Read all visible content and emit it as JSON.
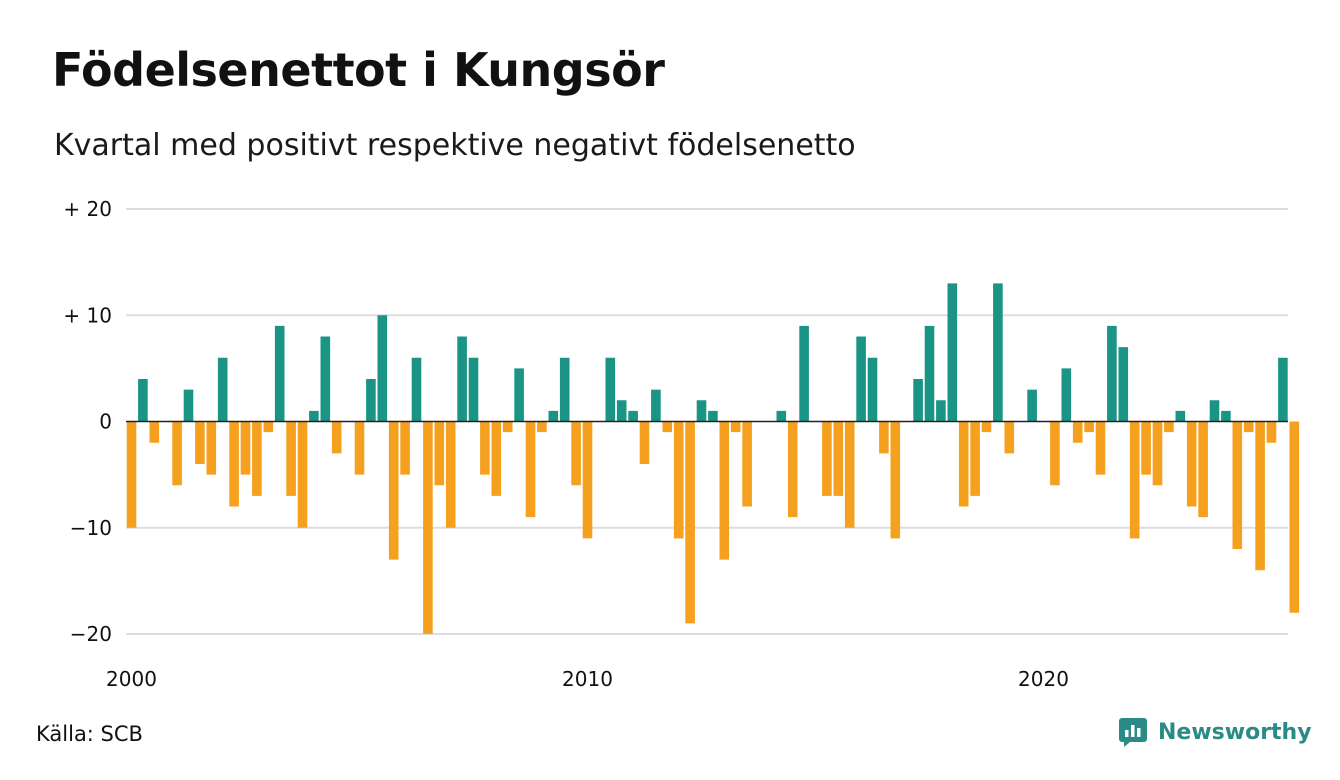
{
  "title": "Födelsenettot i Kungsör",
  "subtitle": "Kvartal med positivt respektive negativt födelsenetto",
  "source": "Källa: SCB",
  "brand": "Newsworthy",
  "colors": {
    "positive": "#1a9485",
    "negative": "#f5a01e",
    "grid": "#dddddd",
    "zero": "#222222",
    "brand": "#2a8a86"
  },
  "chart_data": {
    "type": "bar",
    "title": "Födelsenettot i Kungsör",
    "subtitle": "Kvartal med positivt respektive negativt födelsenetto",
    "xlabel": "",
    "ylabel": "",
    "ylim": [
      -20,
      20
    ],
    "y_ticks": [
      {
        "value": 20,
        "label": "+ 20"
      },
      {
        "value": 10,
        "label": "+ 10"
      },
      {
        "value": 0,
        "label": "0"
      },
      {
        "value": -10,
        "label": "−10"
      },
      {
        "value": -20,
        "label": "−20"
      }
    ],
    "x_ticks": [
      {
        "year": 2000,
        "label": "2000"
      },
      {
        "year": 2010,
        "label": "2010"
      },
      {
        "year": 2020,
        "label": "2020"
      }
    ],
    "grid": true,
    "start_quarter": "2000 Q1",
    "values": [
      -10,
      4,
      -2,
      0,
      -6,
      3,
      -4,
      -5,
      6,
      -8,
      -5,
      -7,
      -1,
      9,
      -7,
      -10,
      1,
      8,
      -3,
      0,
      -5,
      4,
      10,
      -13,
      -5,
      6,
      -20,
      -6,
      -10,
      8,
      6,
      -5,
      -7,
      -1,
      5,
      -9,
      -1,
      1,
      6,
      -6,
      -11,
      0,
      6,
      2,
      1,
      -4,
      3,
      -1,
      -11,
      -19,
      2,
      1,
      -13,
      -1,
      -8,
      0,
      0,
      1,
      -9,
      9,
      0,
      -7,
      -7,
      -10,
      8,
      6,
      -3,
      -11,
      0,
      4,
      9,
      2,
      13,
      -8,
      -7,
      -1,
      13,
      -3,
      0,
      3,
      0,
      -6,
      5,
      -2,
      -1,
      -5,
      9,
      7,
      -11,
      -5,
      -6,
      -1,
      1,
      -8,
      -9,
      2,
      1,
      -12,
      -1,
      -14,
      -2,
      6,
      -18
    ]
  }
}
